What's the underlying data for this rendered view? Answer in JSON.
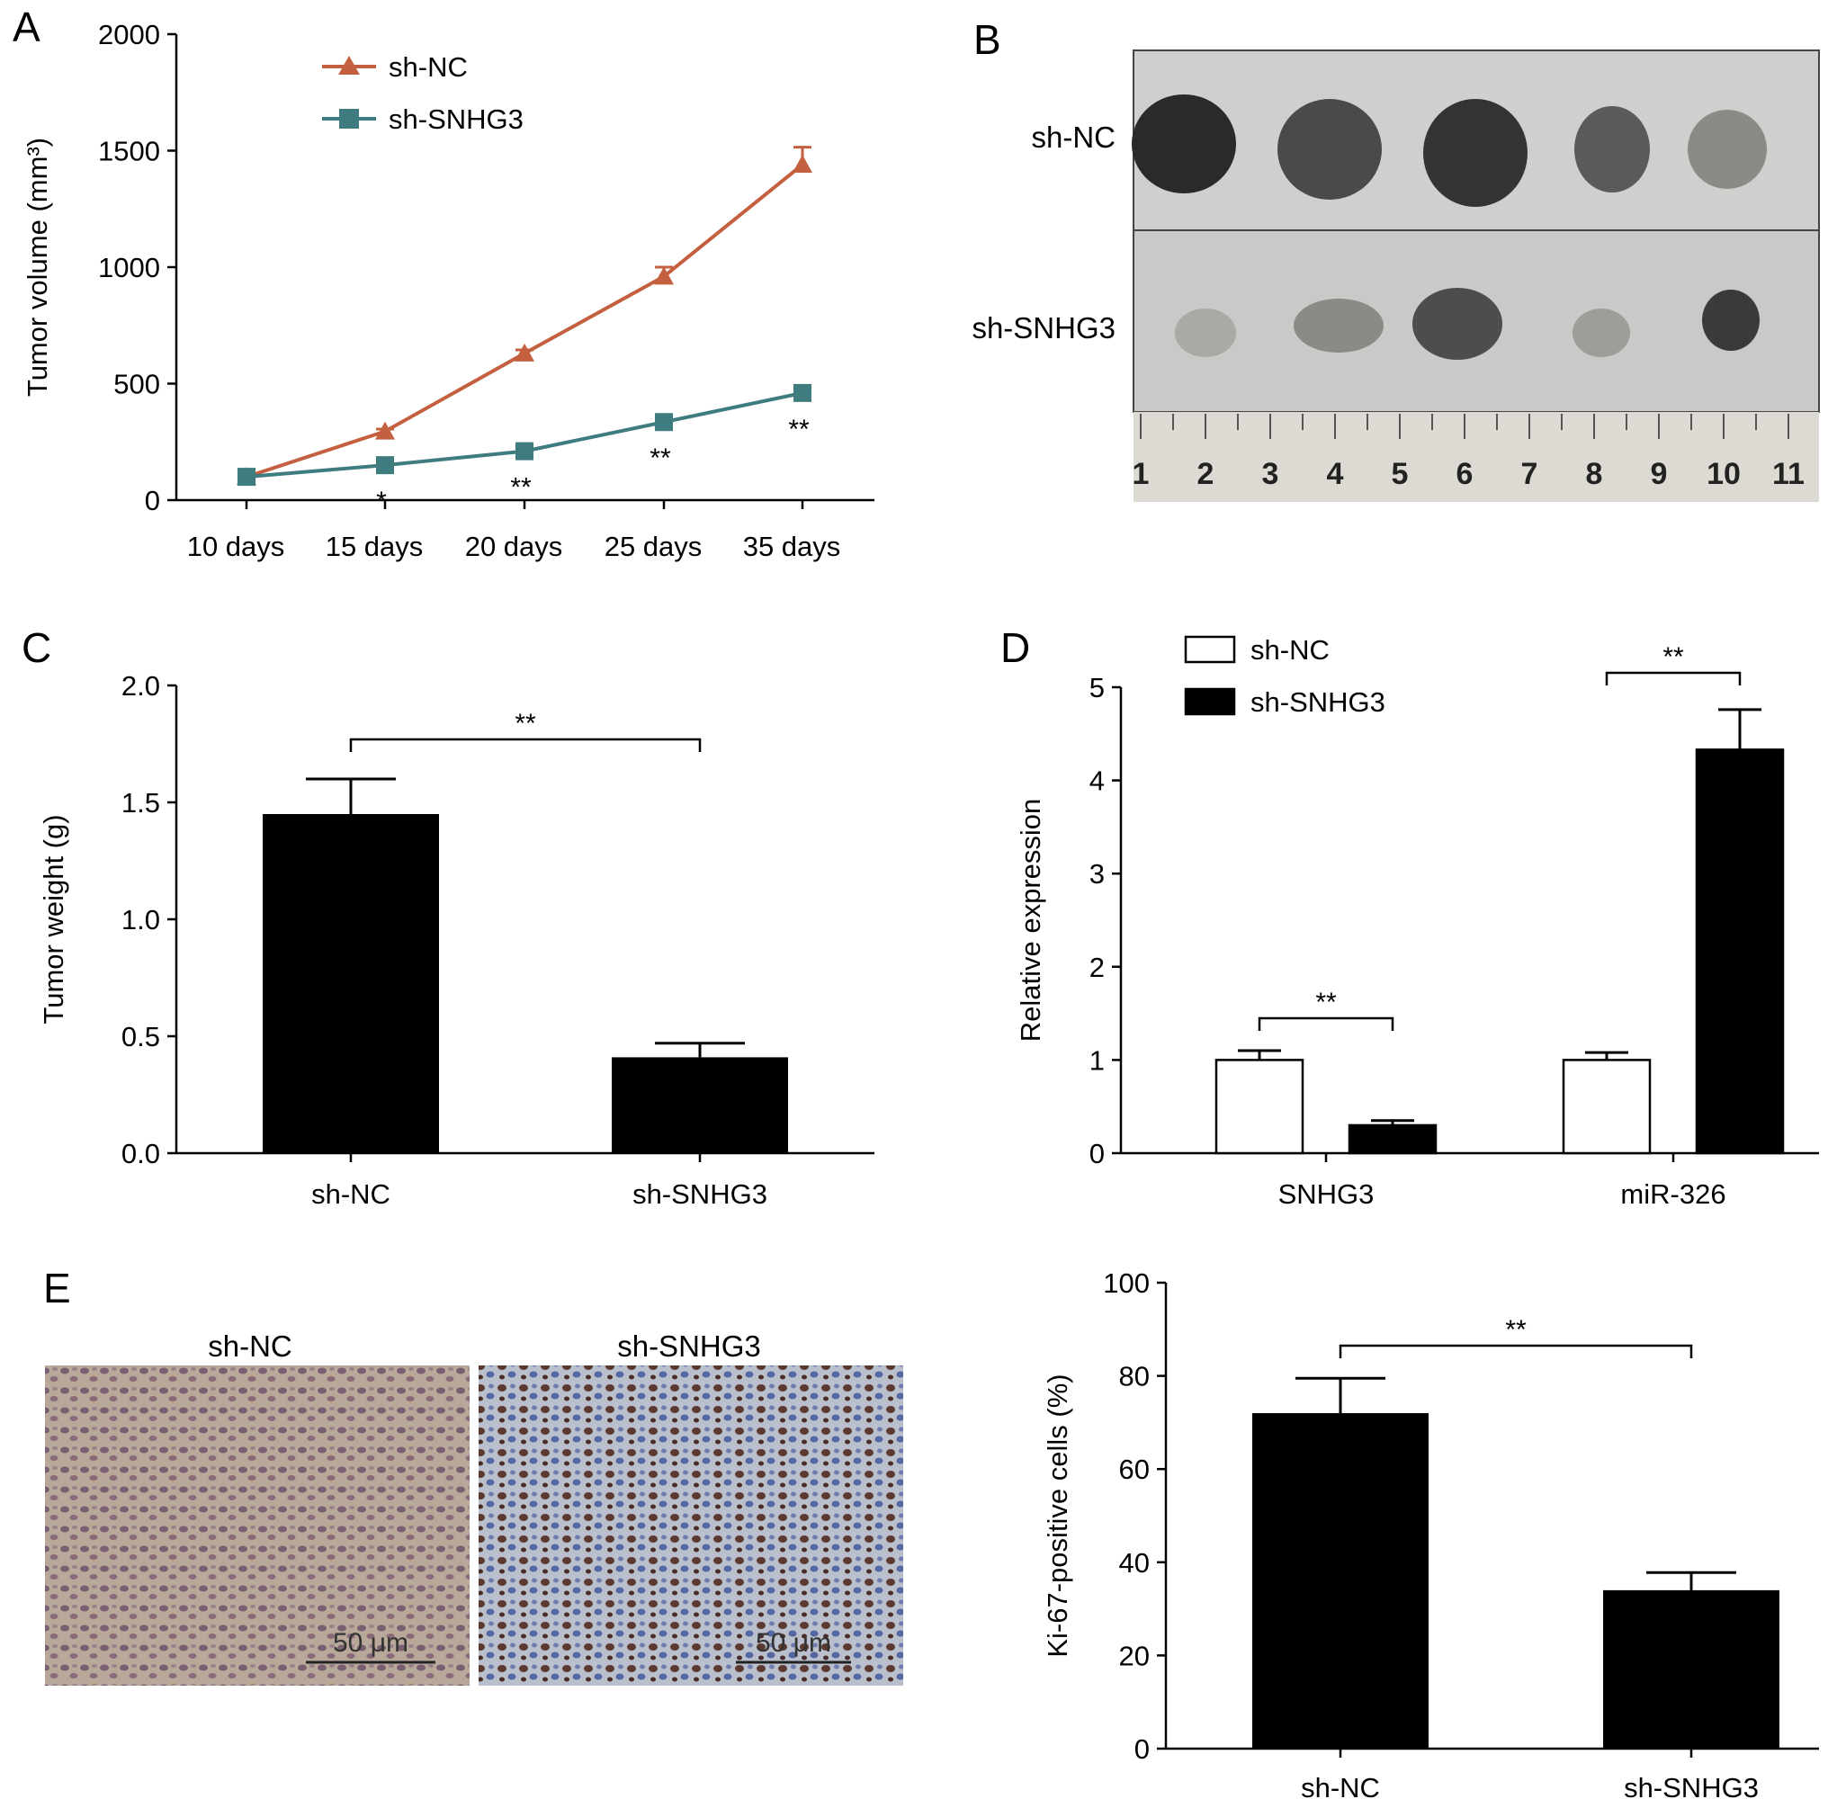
{
  "panels": {
    "a": "A",
    "b": "B",
    "c": "C",
    "d": "D",
    "e": "E"
  },
  "photo_b": {
    "row_labels": [
      "sh-NC",
      "sh-SNHG3"
    ],
    "ruler_numbers": [
      "1",
      "2",
      "3",
      "4",
      "5",
      "6",
      "7",
      "8",
      "9",
      "10",
      "11"
    ]
  },
  "photo_e": {
    "labels": [
      "sh-NC",
      "sh-SNHG3"
    ],
    "scale_bar": "50 μm"
  },
  "colors": {
    "sh_nc_line": "#c4603f",
    "sh_snhg3_line": "#3f7c80",
    "bar_black": "#000000",
    "bar_white": "#ffffff"
  },
  "chart_data": [
    {
      "type": "line",
      "panel": "A",
      "x": [
        "10 days",
        "15 days",
        "20 days",
        "25 days",
        "35 days"
      ],
      "ylabel": "Tumor volume (mm³)",
      "ylim": [
        0,
        2000
      ],
      "yticks": [
        "0",
        "500",
        "1000",
        "1500",
        "2000"
      ],
      "legend": "top-left",
      "series": [
        {
          "name": "sh-NC",
          "values": [
            100,
            295,
            630,
            960,
            1440
          ],
          "errors": [
            0,
            10,
            15,
            40,
            75
          ],
          "marker": "triangle"
        },
        {
          "name": "sh-SNHG3",
          "values": [
            100,
            150,
            210,
            335,
            460
          ],
          "errors": [
            0,
            5,
            8,
            10,
            12
          ],
          "marker": "square"
        }
      ],
      "annotations": [
        "",
        "*",
        "**",
        "**",
        "**"
      ]
    },
    {
      "type": "bar",
      "panel": "C",
      "categories": [
        "sh-NC",
        "sh-SNHG3"
      ],
      "values": [
        1.45,
        0.41
      ],
      "errors": [
        0.15,
        0.06
      ],
      "ylabel": "Tumor weight (g)",
      "ylim": [
        0,
        2.0
      ],
      "yticks": [
        "0.0",
        "0.5",
        "1.0",
        "1.5",
        "2.0"
      ],
      "significance": "**"
    },
    {
      "type": "bar",
      "panel": "D",
      "categories": [
        "SNHG3",
        "miR-326"
      ],
      "ylabel": "Relative expression",
      "ylim": [
        0,
        5
      ],
      "yticks": [
        "0",
        "1",
        "2",
        "3",
        "4",
        "5"
      ],
      "legend": "top-left",
      "series": [
        {
          "name": "sh-NC",
          "values": [
            1.0,
            1.0
          ],
          "errors": [
            0.1,
            0.08
          ]
        },
        {
          "name": "sh-SNHG3",
          "values": [
            0.3,
            4.33
          ],
          "errors": [
            0.05,
            0.43
          ]
        }
      ],
      "significance": [
        "**",
        "**"
      ]
    },
    {
      "type": "bar",
      "panel": "E",
      "categories": [
        "sh-NC",
        "sh-SNHG3"
      ],
      "values": [
        72,
        34
      ],
      "errors": [
        7.5,
        3.8
      ],
      "ylabel": "Ki-67-positive cells (%)",
      "ylim": [
        0,
        100
      ],
      "yticks": [
        "0",
        "20",
        "40",
        "60",
        "80",
        "100"
      ],
      "significance": "**"
    }
  ]
}
